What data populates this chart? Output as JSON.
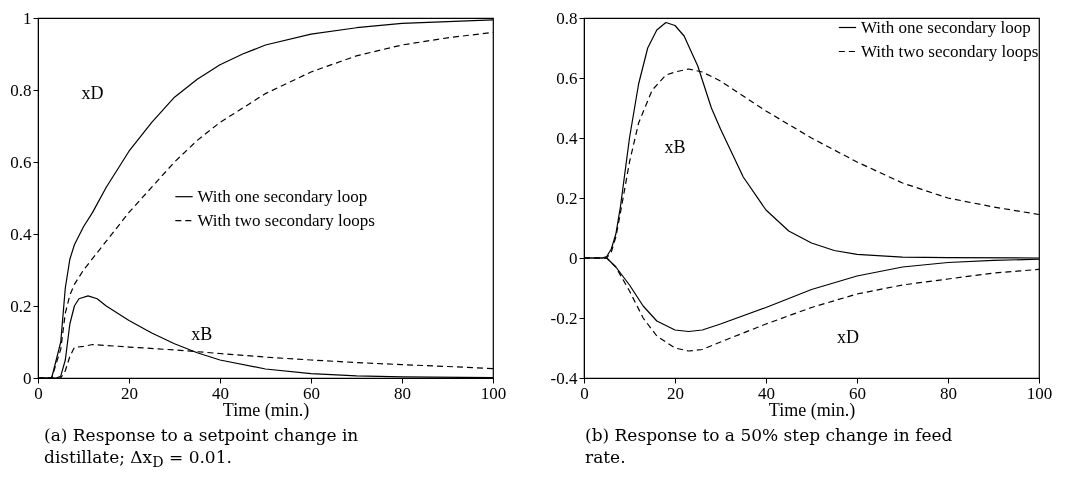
{
  "chart_data": [
    {
      "type": "line",
      "title": "(a) Response to a setpoint change in distillate; Δx$_{D}$ = 0.01.",
      "xlabel": "Time (min.)",
      "xlim": [
        0,
        100
      ],
      "xticks": [
        0,
        20,
        40,
        60,
        80,
        100
      ],
      "ylim": [
        0,
        1
      ],
      "yticks": [
        0,
        0.2,
        0.4,
        0.6,
        0.8,
        1
      ],
      "legend": "right",
      "grid": false,
      "annotations": [
        "xD",
        "xB"
      ],
      "series": [
        {
          "name": "With one secondary loop",
          "color": "#000000",
          "line_style": "solid",
          "x": [
            0,
            3,
            5,
            6,
            7,
            8,
            10,
            12,
            15,
            20,
            25,
            30,
            35,
            40,
            45,
            50,
            60,
            70,
            80,
            90,
            100
          ],
          "values": [
            0,
            0,
            0.1,
            0.25,
            0.33,
            0.37,
            0.42,
            0.46,
            0.53,
            0.63,
            0.71,
            0.78,
            0.83,
            0.87,
            0.9,
            0.925,
            0.955,
            0.973,
            0.985,
            0.99,
            0.995
          ]
        },
        {
          "name": "With two secondary loops",
          "color": "#000000",
          "line_style": "dashed",
          "x": [
            0,
            3,
            5,
            6,
            7,
            8,
            10,
            15,
            20,
            25,
            30,
            35,
            40,
            45,
            50,
            60,
            70,
            80,
            90,
            100
          ],
          "values": [
            0,
            0,
            0.08,
            0.18,
            0.23,
            0.26,
            0.3,
            0.38,
            0.46,
            0.53,
            0.6,
            0.66,
            0.71,
            0.75,
            0.79,
            0.85,
            0.895,
            0.925,
            0.945,
            0.96
          ]
        },
        {
          "color": "#000000",
          "line_style": "solid",
          "x": [
            0,
            4,
            5,
            6,
            7,
            8,
            9,
            11,
            13,
            15,
            20,
            25,
            30,
            35,
            40,
            50,
            60,
            70,
            80,
            100
          ],
          "values": [
            0,
            0,
            0.005,
            0.05,
            0.15,
            0.2,
            0.22,
            0.228,
            0.22,
            0.2,
            0.16,
            0.125,
            0.095,
            0.07,
            0.05,
            0.025,
            0.012,
            0.006,
            0.003,
            0.001
          ]
        },
        {
          "color": "#000000",
          "line_style": "dashed",
          "x": [
            0,
            5,
            6,
            7,
            8,
            10,
            12,
            20,
            30,
            40,
            50,
            60,
            70,
            80,
            90,
            100
          ],
          "values": [
            0,
            0,
            0.02,
            0.06,
            0.085,
            0.088,
            0.093,
            0.086,
            0.078,
            0.068,
            0.058,
            0.05,
            0.043,
            0.037,
            0.032,
            0.026
          ]
        }
      ]
    },
    {
      "type": "line",
      "title": "(b) Response to a 50% step change in feed rate.",
      "xlabel": "Time (min.)",
      "xlim": [
        0,
        100
      ],
      "xticks": [
        0,
        20,
        40,
        60,
        80,
        100
      ],
      "ylim": [
        -0.4,
        0.8
      ],
      "yticks": [
        -0.4,
        -0.2,
        0,
        0.2,
        0.4,
        0.6,
        0.8
      ],
      "legend": "top right",
      "grid": false,
      "annotations": [
        "xB",
        "xD"
      ],
      "series": [
        {
          "name": "With one secondary loop",
          "color": "#000000",
          "line_style": "solid",
          "x": [
            0,
            4,
            5,
            6,
            7,
            8,
            10,
            12,
            14,
            16,
            18,
            20,
            22,
            25,
            28,
            30,
            35,
            40,
            45,
            50,
            55,
            60,
            70,
            80,
            100
          ],
          "values": [
            0,
            0,
            0.005,
            0.03,
            0.08,
            0.17,
            0.4,
            0.58,
            0.7,
            0.76,
            0.785,
            0.775,
            0.74,
            0.64,
            0.5,
            0.43,
            0.27,
            0.16,
            0.09,
            0.05,
            0.025,
            0.012,
            0.003,
            0.001,
            0
          ]
        },
        {
          "name": "With two secondary loops",
          "color": "#000000",
          "line_style": "dashed",
          "x": [
            0,
            5,
            6,
            7,
            8,
            10,
            12,
            15,
            18,
            20,
            23,
            26,
            30,
            35,
            40,
            50,
            60,
            70,
            80,
            90,
            100
          ],
          "values": [
            0,
            0,
            0.02,
            0.07,
            0.15,
            0.32,
            0.45,
            0.56,
            0.61,
            0.62,
            0.63,
            0.62,
            0.59,
            0.54,
            0.49,
            0.4,
            0.32,
            0.25,
            0.2,
            0.17,
            0.145
          ]
        },
        {
          "color": "#000000",
          "line_style": "solid",
          "x": [
            0,
            5,
            7,
            10,
            13,
            16,
            20,
            23,
            26,
            30,
            40,
            50,
            60,
            70,
            80,
            90,
            100
          ],
          "values": [
            0,
            0,
            -0.03,
            -0.09,
            -0.16,
            -0.21,
            -0.24,
            -0.245,
            -0.24,
            -0.22,
            -0.165,
            -0.105,
            -0.06,
            -0.03,
            -0.015,
            -0.008,
            -0.004
          ]
        },
        {
          "color": "#000000",
          "line_style": "dashed",
          "x": [
            0,
            5,
            7,
            10,
            13,
            16,
            20,
            23,
            26,
            30,
            40,
            50,
            60,
            70,
            80,
            90,
            100
          ],
          "values": [
            0,
            0,
            -0.03,
            -0.11,
            -0.2,
            -0.26,
            -0.3,
            -0.31,
            -0.305,
            -0.28,
            -0.22,
            -0.165,
            -0.12,
            -0.09,
            -0.07,
            -0.05,
            -0.038
          ]
        }
      ]
    }
  ]
}
